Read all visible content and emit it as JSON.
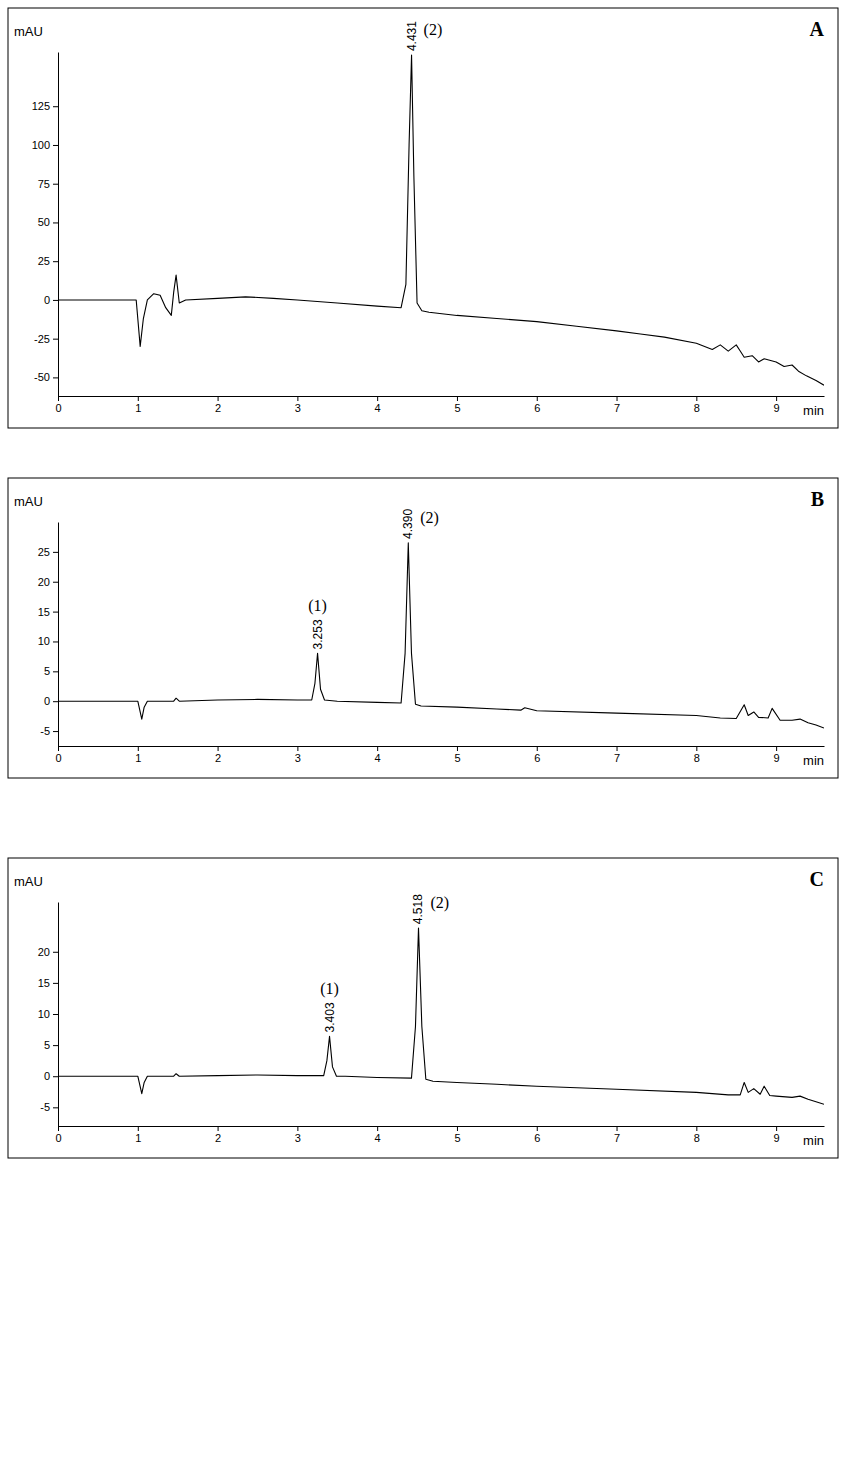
{
  "chart_data": [
    {
      "type": "line",
      "panel": "A",
      "y_label": "mAU",
      "x_label": "min",
      "color": "#000000",
      "xlim": [
        0,
        9.6
      ],
      "xticks": [
        0,
        1,
        2,
        3,
        4,
        5,
        6,
        7,
        8,
        9
      ],
      "ylim": [
        -62,
        160
      ],
      "yticks": [
        -50,
        -25,
        0,
        25,
        50,
        75,
        100,
        125
      ],
      "x": [
        0,
        0.98,
        1.03,
        1.07,
        1.12,
        1.2,
        1.28,
        1.35,
        1.42,
        1.45,
        1.48,
        1.52,
        1.6,
        2.0,
        2.35,
        2.7,
        3.0,
        3.5,
        4.0,
        4.3,
        4.36,
        4.4,
        4.431,
        4.46,
        4.5,
        4.56,
        4.65,
        5.0,
        5.5,
        6.0,
        6.5,
        7.0,
        7.3,
        7.6,
        8.0,
        8.2,
        8.3,
        8.4,
        8.5,
        8.55,
        8.6,
        8.7,
        8.78,
        8.85,
        9.0,
        9.1,
        9.2,
        9.28,
        9.38,
        9.5,
        9.6
      ],
      "values": [
        0,
        0,
        -30,
        -12,
        0,
        4,
        3,
        -5,
        -10,
        5,
        16,
        -2,
        0,
        1,
        2,
        1,
        0,
        -2,
        -4,
        -5,
        10,
        100,
        158,
        80,
        -2,
        -7,
        -8,
        -10,
        -12,
        -14,
        -17,
        -20,
        -22,
        -24,
        -28,
        -32,
        -29,
        -33,
        -29,
        -33,
        -37,
        -36,
        -40,
        -38,
        -40,
        -43,
        -42,
        -46,
        -49,
        -52,
        -55
      ],
      "peaks": [
        {
          "x": 4.431,
          "height": 158,
          "label": "4.431",
          "name": "(2)"
        }
      ]
    },
    {
      "type": "line",
      "panel": "B",
      "y_label": "mAU",
      "x_label": "min",
      "color": "#000000",
      "xlim": [
        0,
        9.6
      ],
      "xticks": [
        0,
        1,
        2,
        3,
        4,
        5,
        6,
        7,
        8,
        9
      ],
      "ylim": [
        -7.5,
        30
      ],
      "yticks": [
        -5,
        0,
        5,
        10,
        15,
        20,
        25
      ],
      "x": [
        0,
        1.0,
        1.05,
        1.08,
        1.12,
        1.2,
        1.45,
        1.48,
        1.52,
        2.0,
        2.5,
        3.0,
        3.18,
        3.22,
        3.253,
        3.29,
        3.34,
        3.5,
        4.0,
        4.3,
        4.35,
        4.39,
        4.43,
        4.48,
        4.55,
        5.0,
        5.5,
        5.8,
        5.85,
        6.0,
        7.0,
        8.0,
        8.3,
        8.5,
        8.6,
        8.65,
        8.72,
        8.78,
        8.9,
        8.95,
        9.05,
        9.2,
        9.3,
        9.4,
        9.5,
        9.6
      ],
      "values": [
        0,
        0,
        -3,
        -1,
        0,
        0,
        0,
        0.5,
        0,
        0.2,
        0.3,
        0.2,
        0.2,
        3,
        8,
        2,
        0.2,
        0,
        -0.2,
        -0.3,
        8,
        26.5,
        8,
        -0.5,
        -0.8,
        -1,
        -1.3,
        -1.5,
        -1.1,
        -1.6,
        -2,
        -2.4,
        -2.8,
        -2.9,
        -0.6,
        -2.4,
        -1.8,
        -2.7,
        -2.8,
        -1.2,
        -3.2,
        -3.2,
        -3.0,
        -3.6,
        -4.0,
        -4.5
      ],
      "peaks": [
        {
          "x": 3.253,
          "height": 8,
          "label": "3.253",
          "name": "(1)"
        },
        {
          "x": 4.39,
          "height": 26.5,
          "label": "4.390",
          "name": "(2)"
        }
      ]
    },
    {
      "type": "line",
      "panel": "C",
      "y_label": "mAU",
      "x_label": "min",
      "color": "#000000",
      "xlim": [
        0,
        9.6
      ],
      "xticks": [
        0,
        1,
        2,
        3,
        4,
        5,
        6,
        7,
        8,
        9
      ],
      "ylim": [
        -8,
        28
      ],
      "yticks": [
        -5,
        0,
        5,
        10,
        15,
        20
      ],
      "x": [
        0,
        1.0,
        1.05,
        1.08,
        1.12,
        1.2,
        1.45,
        1.48,
        1.52,
        2.0,
        2.5,
        3.0,
        3.33,
        3.37,
        3.403,
        3.44,
        3.49,
        3.6,
        4.0,
        4.43,
        4.48,
        4.518,
        4.56,
        4.61,
        4.7,
        5.0,
        5.5,
        6.0,
        7.0,
        8.0,
        8.4,
        8.55,
        8.6,
        8.65,
        8.72,
        8.8,
        8.85,
        8.92,
        9.0,
        9.2,
        9.3,
        9.4,
        9.5,
        9.6
      ],
      "values": [
        0,
        0,
        -2.8,
        -1,
        0,
        0,
        0,
        0.4,
        0,
        0.1,
        0.2,
        0.1,
        0.1,
        2.5,
        6.4,
        1.5,
        0,
        0,
        -0.2,
        -0.3,
        8,
        23.8,
        8,
        -0.5,
        -0.8,
        -1,
        -1.3,
        -1.6,
        -2.1,
        -2.6,
        -3,
        -3,
        -1,
        -2.6,
        -2,
        -2.9,
        -1.6,
        -3.1,
        -3.2,
        -3.4,
        -3.2,
        -3.7,
        -4.1,
        -4.5
      ],
      "peaks": [
        {
          "x": 3.403,
          "height": 6.4,
          "label": "3.403",
          "name": "(1)"
        },
        {
          "x": 4.518,
          "height": 23.8,
          "label": "4.518",
          "name": "(2)"
        }
      ]
    }
  ]
}
